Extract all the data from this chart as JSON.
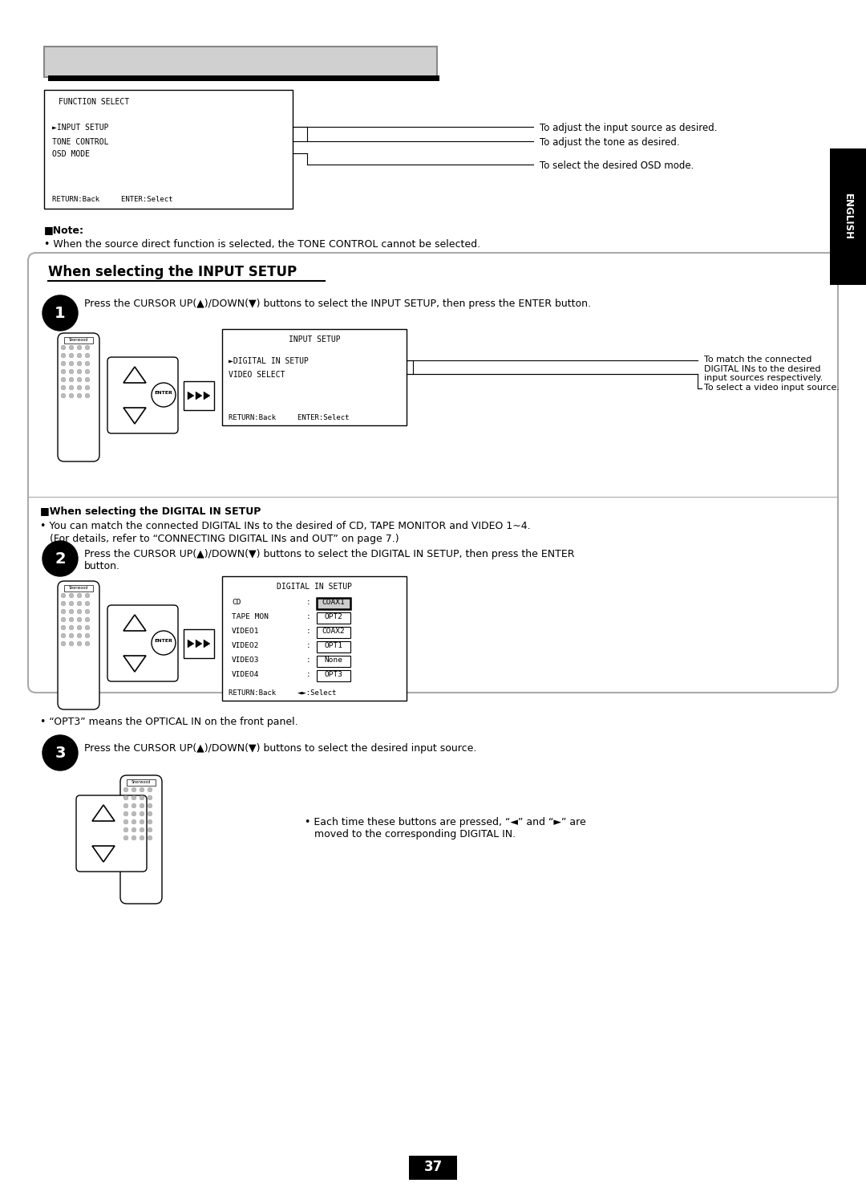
{
  "page_bg": "#ffffff",
  "page_number": "37",
  "english_tab_text": "ENGLISH",
  "function_select_box": {
    "title": "FUNCTION SELECT",
    "lines": [
      "►INPUT SETUP",
      "TONE CONTROL",
      "OSD MODE"
    ],
    "footer": "RETURN:Back     ENTER:Select"
  },
  "fs_annotations": [
    "To adjust the input source as desired.",
    "To adjust the tone as desired.",
    "To select the desired OSD mode."
  ],
  "note_lines": [
    "■Note:",
    "• When the source direct function is selected, the TONE CONTROL cannot be selected."
  ],
  "section_title": "When selecting the INPUT SETUP",
  "step1_text": "Press the CURSOR UP(▲)/DOWN(▼) buttons to select the INPUT SETUP, then press the ENTER button.",
  "input_setup_box": {
    "title": "INPUT SETUP",
    "lines": [
      "►DIGITAL IN SETUP",
      "VIDEO SELECT"
    ],
    "footer": "RETURN:Back     ENTER:Select"
  },
  "is_ann1": "To match the connected\nDIGITAL INs to the desired\ninput sources respectively.",
  "is_ann2": "To select a video input source.",
  "digital_note_header": "■When selecting the DIGITAL IN SETUP",
  "digital_note1": "• You can match the connected DIGITAL INs to the desired of CD, TAPE MONITOR and VIDEO 1~4.",
  "digital_note2": "   (For details, refer to “CONNECTING DIGITAL INs and OUT” on page 7.)",
  "step2_text": "Press the CURSOR UP(▲)/DOWN(▼) buttons to select the DIGITAL IN SETUP, then press the ENTER\nbutton.",
  "digital_in_setup_box": {
    "title": "DIGITAL IN SETUP",
    "rows": [
      [
        "CD",
        "COAX1"
      ],
      [
        "TAPE MON",
        "OPT2"
      ],
      [
        "VIDEO1",
        "COAX2"
      ],
      [
        "VIDEO2",
        "OPT1"
      ],
      [
        "VIDEO3",
        "None"
      ],
      [
        "VIDEO4",
        "OPT3"
      ]
    ],
    "footer": "RETURN:Back     ◄►:Select"
  },
  "opt3_note": "• “OPT3” means the OPTICAL IN on the front panel.",
  "step3_text": "Press the CURSOR UP(▲)/DOWN(▼) buttons to select the desired input source.",
  "step3_note": "• Each time these buttons are pressed, “◄” and “►” are\n   moved to the corresponding DIGITAL IN."
}
